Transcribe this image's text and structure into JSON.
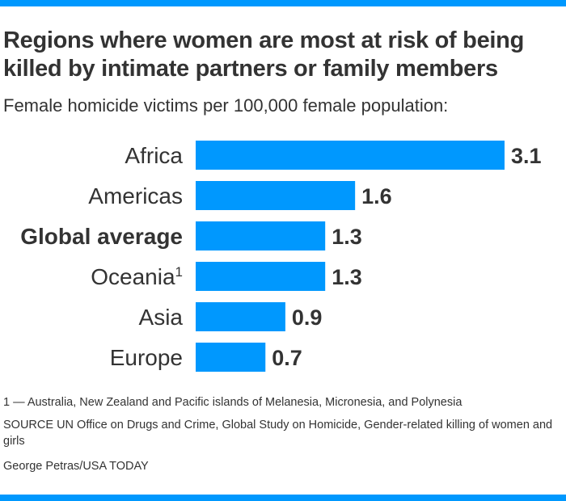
{
  "chart_data": {
    "type": "bar",
    "orientation": "horizontal",
    "title": "Regions where women are most at risk of being killed by intimate partners or family members",
    "subtitle": "Female homicide victims per 100,000 female population:",
    "categories": [
      "Africa",
      "Americas",
      "Global average",
      "Oceania",
      "Asia",
      "Europe"
    ],
    "category_superscripts": [
      "",
      "",
      "",
      "1",
      "",
      ""
    ],
    "bold_categories": [
      "Global average"
    ],
    "values": [
      3.1,
      1.6,
      1.3,
      1.3,
      0.9,
      0.7
    ],
    "value_labels": [
      "3.1",
      "1.6",
      "1.3",
      "1.3",
      "0.9",
      "0.7"
    ],
    "xlim": [
      0,
      3.1
    ],
    "grid": false,
    "bar_color": "#0098fe"
  },
  "footnote": "1 — Australia, New Zealand and Pacific islands of Melanesia, Micronesia, and Polynesia",
  "source": "SOURCE UN Office on Drugs and Crime, Global Study on Homicide, Gender-related killing of women and girls",
  "credit": "George Petras/USA TODAY",
  "accent_color": "#0098fe"
}
